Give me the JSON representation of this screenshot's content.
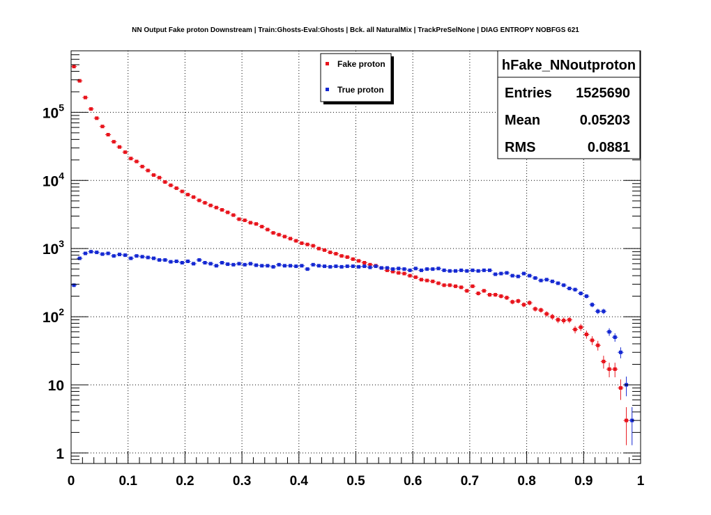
{
  "chart_data": {
    "type": "scatter",
    "title": "NN Output Fake proton Downstream | Train:Ghosts-Eval:Ghosts | Bck. all NaturalMix | TrackPreSelNone | DIAG ENTROPY NOBFGS 621",
    "xlabel": "",
    "ylabel": "",
    "xlim": [
      0,
      1
    ],
    "ylim": [
      0.7,
      800000
    ],
    "ylog": true,
    "grid": true,
    "x_ticks": [
      {
        "v": 0,
        "label": "0"
      },
      {
        "v": 0.1,
        "label": "0.1"
      },
      {
        "v": 0.2,
        "label": "0.2"
      },
      {
        "v": 0.3,
        "label": "0.3"
      },
      {
        "v": 0.4,
        "label": "0.4"
      },
      {
        "v": 0.5,
        "label": "0.5"
      },
      {
        "v": 0.6,
        "label": "0.6"
      },
      {
        "v": 0.7,
        "label": "0.7"
      },
      {
        "v": 0.8,
        "label": "0.8"
      },
      {
        "v": 0.9,
        "label": "0.9"
      },
      {
        "v": 1,
        "label": "1"
      }
    ],
    "y_ticks": [
      {
        "v": 1,
        "base": "1",
        "exp": ""
      },
      {
        "v": 10,
        "base": "10",
        "exp": ""
      },
      {
        "v": 100,
        "base": "10",
        "exp": "2"
      },
      {
        "v": 1000,
        "base": "10",
        "exp": "3"
      },
      {
        "v": 10000,
        "base": "10",
        "exp": "4"
      },
      {
        "v": 100000,
        "base": "10",
        "exp": "5"
      }
    ],
    "bin_width": 0.01,
    "series": [
      {
        "name": "Fake proton",
        "color": "#e8141c",
        "x": [
          0.005,
          0.015,
          0.025,
          0.035,
          0.045,
          0.055,
          0.065,
          0.075,
          0.085,
          0.095,
          0.105,
          0.115,
          0.125,
          0.135,
          0.145,
          0.155,
          0.165,
          0.175,
          0.185,
          0.195,
          0.205,
          0.215,
          0.225,
          0.235,
          0.245,
          0.255,
          0.265,
          0.275,
          0.285,
          0.295,
          0.305,
          0.315,
          0.325,
          0.335,
          0.345,
          0.355,
          0.365,
          0.375,
          0.385,
          0.395,
          0.405,
          0.415,
          0.425,
          0.435,
          0.445,
          0.455,
          0.465,
          0.475,
          0.485,
          0.495,
          0.505,
          0.515,
          0.525,
          0.535,
          0.545,
          0.555,
          0.565,
          0.575,
          0.585,
          0.595,
          0.605,
          0.615,
          0.625,
          0.635,
          0.645,
          0.655,
          0.665,
          0.675,
          0.685,
          0.695,
          0.705,
          0.715,
          0.725,
          0.735,
          0.745,
          0.755,
          0.765,
          0.775,
          0.785,
          0.795,
          0.805,
          0.815,
          0.825,
          0.835,
          0.845,
          0.855,
          0.865,
          0.875,
          0.885,
          0.895,
          0.905,
          0.915,
          0.925,
          0.935,
          0.945,
          0.955,
          0.965,
          0.975
        ],
        "values": [
          470000,
          290000,
          165000,
          112000,
          82000,
          62000,
          47000,
          37000,
          31000,
          26000,
          21000,
          19000,
          16000,
          14000,
          12000,
          11000,
          9500,
          8500,
          7700,
          6900,
          6200,
          5700,
          5100,
          4700,
          4300,
          4000,
          3700,
          3400,
          3100,
          2700,
          2600,
          2400,
          2300,
          2100,
          1900,
          1700,
          1600,
          1500,
          1400,
          1300,
          1200,
          1150,
          1100,
          1000,
          950,
          880,
          840,
          780,
          750,
          700,
          660,
          620,
          580,
          560,
          520,
          480,
          460,
          440,
          430,
          400,
          380,
          350,
          340,
          330,
          310,
          290,
          290,
          280,
          270,
          240,
          280,
          220,
          240,
          210,
          210,
          200,
          190,
          165,
          170,
          150,
          160,
          130,
          125,
          110,
          100,
          90,
          88,
          90,
          65,
          70,
          55,
          45,
          38,
          22,
          17,
          17,
          9,
          3
        ],
        "errors": [
          690,
          540,
          410,
          340,
          290,
          250,
          220,
          190,
          180,
          160,
          150,
          140,
          130,
          120,
          110,
          105,
          97,
          92,
          88,
          83,
          79,
          75,
          71,
          69,
          66,
          63,
          61,
          58,
          56,
          52,
          51,
          49,
          48,
          46,
          44,
          41,
          40,
          39,
          37,
          36,
          35,
          34,
          33,
          32,
          31,
          30,
          29,
          28,
          27,
          26,
          26,
          25,
          24,
          24,
          23,
          22,
          21,
          21,
          21,
          20,
          19,
          19,
          18,
          18,
          18,
          17,
          17,
          17,
          16,
          15,
          17,
          15,
          15,
          14,
          14,
          14,
          14,
          13,
          13,
          12,
          13,
          11,
          11,
          10,
          10,
          9.5,
          9.4,
          9.5,
          8.1,
          8.4,
          7.4,
          6.7,
          6.2,
          4.7,
          4.1,
          4.1,
          3,
          1.7
        ]
      },
      {
        "name": "True proton",
        "color": "#1428d2",
        "x": [
          0.005,
          0.015,
          0.025,
          0.035,
          0.045,
          0.055,
          0.065,
          0.075,
          0.085,
          0.095,
          0.105,
          0.115,
          0.125,
          0.135,
          0.145,
          0.155,
          0.165,
          0.175,
          0.185,
          0.195,
          0.205,
          0.215,
          0.225,
          0.235,
          0.245,
          0.255,
          0.265,
          0.275,
          0.285,
          0.295,
          0.305,
          0.315,
          0.325,
          0.335,
          0.345,
          0.355,
          0.365,
          0.375,
          0.385,
          0.395,
          0.405,
          0.415,
          0.425,
          0.435,
          0.445,
          0.455,
          0.465,
          0.475,
          0.485,
          0.495,
          0.505,
          0.515,
          0.525,
          0.535,
          0.545,
          0.555,
          0.565,
          0.575,
          0.585,
          0.595,
          0.605,
          0.615,
          0.625,
          0.635,
          0.645,
          0.655,
          0.665,
          0.675,
          0.685,
          0.695,
          0.705,
          0.715,
          0.725,
          0.735,
          0.745,
          0.755,
          0.765,
          0.775,
          0.785,
          0.795,
          0.805,
          0.815,
          0.825,
          0.835,
          0.845,
          0.855,
          0.865,
          0.875,
          0.885,
          0.895,
          0.905,
          0.915,
          0.925,
          0.935,
          0.945,
          0.955,
          0.965,
          0.975,
          0.985
        ],
        "values": [
          290,
          720,
          850,
          900,
          880,
          830,
          850,
          780,
          820,
          800,
          720,
          780,
          760,
          740,
          720,
          680,
          680,
          640,
          650,
          620,
          650,
          600,
          680,
          620,
          600,
          560,
          620,
          590,
          580,
          600,
          580,
          600,
          570,
          560,
          560,
          540,
          580,
          560,
          560,
          550,
          560,
          500,
          580,
          560,
          550,
          540,
          550,
          540,
          550,
          550,
          540,
          550,
          530,
          550,
          520,
          520,
          500,
          510,
          500,
          480,
          510,
          480,
          500,
          500,
          510,
          480,
          470,
          470,
          480,
          470,
          480,
          470,
          480,
          480,
          420,
          430,
          440,
          400,
          390,
          430,
          400,
          370,
          340,
          350,
          330,
          310,
          290,
          260,
          250,
          220,
          200,
          150,
          120,
          120,
          60,
          50,
          30,
          10,
          3
        ],
        "errors": [
          17,
          27,
          29,
          30,
          30,
          29,
          29,
          28,
          29,
          28,
          27,
          28,
          28,
          27,
          27,
          26,
          26,
          25,
          25,
          25,
          25,
          24,
          26,
          25,
          24,
          24,
          25,
          24,
          24,
          24,
          24,
          24,
          24,
          24,
          24,
          23,
          24,
          24,
          24,
          23,
          24,
          22,
          24,
          24,
          23,
          23,
          23,
          23,
          23,
          23,
          23,
          23,
          23,
          23,
          23,
          23,
          22,
          23,
          22,
          22,
          23,
          22,
          22,
          22,
          23,
          22,
          22,
          22,
          22,
          22,
          22,
          22,
          22,
          22,
          20,
          21,
          21,
          20,
          20,
          21,
          20,
          19,
          18,
          19,
          18,
          18,
          17,
          16,
          16,
          15,
          14,
          12,
          11,
          11,
          7.7,
          7.1,
          5.5,
          3.2,
          1.7
        ]
      }
    ],
    "legend": {
      "position": "top-center",
      "entries": [
        "Fake proton",
        "True proton"
      ]
    },
    "stats": {
      "title": "hFake_NNoutproton",
      "rows": [
        {
          "label": "Entries",
          "value": "1525690"
        },
        {
          "label": "Mean",
          "value": "0.05203"
        },
        {
          "label": "RMS",
          "value": "0.0881"
        }
      ]
    }
  }
}
